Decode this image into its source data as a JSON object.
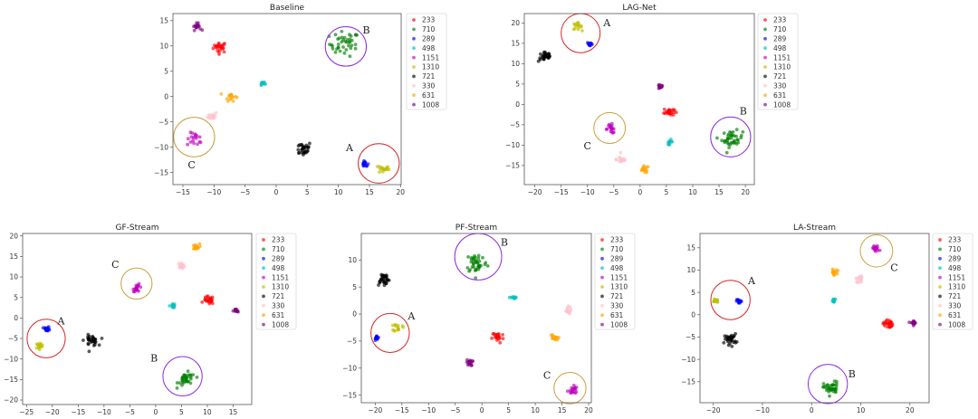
{
  "chart_data": [
    {
      "type": "scatter",
      "title": "Baseline",
      "xlim": [
        -16.6,
        20.1
      ],
      "ylim": [
        -17.4,
        16.4
      ],
      "xticks": [
        -15,
        -10,
        -5,
        0,
        5,
        10,
        15,
        20
      ],
      "yticks": [
        -15,
        -10,
        -5,
        0,
        5,
        10,
        15
      ],
      "legend_position": "outside-right",
      "clusters": [
        {
          "label": "233",
          "center": [
            -9,
            9.8
          ],
          "spread": 1.0,
          "n": 25
        },
        {
          "label": "710",
          "center": [
            11,
            10.4
          ],
          "spread": 2.2,
          "n": 40
        },
        {
          "label": "289",
          "center": [
            14.3,
            -13.4
          ],
          "spread": 0.5,
          "n": 14
        },
        {
          "label": "498",
          "center": [
            -2.3,
            2.6
          ],
          "spread": 0.5,
          "n": 10
        },
        {
          "label": "1151",
          "center": [
            -13,
            -8.5
          ],
          "spread": 1.2,
          "n": 18
        },
        {
          "label": "1310",
          "center": [
            17.3,
            -14.3
          ],
          "spread": 0.8,
          "n": 18
        },
        {
          "label": "721",
          "center": [
            4.3,
            -10.3
          ],
          "spread": 1.3,
          "n": 30
        },
        {
          "label": "330",
          "center": [
            -10.2,
            -3.8
          ],
          "spread": 0.7,
          "n": 15
        },
        {
          "label": "631",
          "center": [
            -7.3,
            0
          ],
          "spread": 0.8,
          "n": 16
        },
        {
          "label": "1008",
          "center": [
            -12.8,
            13.8
          ],
          "spread": 0.6,
          "n": 16
        }
      ],
      "annotations": [
        {
          "text": "B",
          "circle_center": [
            11.2,
            9.9
          ],
          "rx": 3.3,
          "ry": 3.9,
          "color": "#8a2be2",
          "label_pos": [
            14.5,
            12.5
          ]
        },
        {
          "text": "A",
          "circle_center": [
            16.5,
            -13.2
          ],
          "rx": 3.3,
          "ry": 3.9,
          "color": "#d62728",
          "label_pos": [
            11.8,
            -10.8
          ]
        },
        {
          "text": "C",
          "circle_center": [
            -13.2,
            -8
          ],
          "rx": 3.3,
          "ry": 3.9,
          "color": "#c8a040",
          "label_pos": [
            -13.6,
            -14.2
          ]
        }
      ]
    },
    {
      "type": "scatter",
      "title": "LAG-Net",
      "xlim": [
        -22,
        21.7
      ],
      "ylim": [
        -19.7,
        22.3
      ],
      "xticks": [
        -20,
        -15,
        -10,
        -5,
        0,
        5,
        10,
        15,
        20
      ],
      "yticks": [
        -15,
        -10,
        -5,
        0,
        5,
        10,
        15,
        20
      ],
      "legend_position": "outside-right",
      "clusters": [
        {
          "label": "233",
          "center": [
            5.5,
            -1.8
          ],
          "spread": 0.9,
          "n": 25
        },
        {
          "label": "710",
          "center": [
            17.5,
            -8.5
          ],
          "spread": 1.8,
          "n": 40
        },
        {
          "label": "289",
          "center": [
            -9.5,
            14.8
          ],
          "spread": 0.5,
          "n": 14
        },
        {
          "label": "498",
          "center": [
            5.6,
            -9.2
          ],
          "spread": 0.5,
          "n": 10
        },
        {
          "label": "1151",
          "center": [
            -5.5,
            -6
          ],
          "spread": 1.0,
          "n": 18
        },
        {
          "label": "1310",
          "center": [
            -12,
            19.2
          ],
          "spread": 0.8,
          "n": 16
        },
        {
          "label": "721",
          "center": [
            -18,
            11.8
          ],
          "spread": 1.2,
          "n": 30
        },
        {
          "label": "330",
          "center": [
            -3.5,
            -13.5
          ],
          "spread": 0.9,
          "n": 15
        },
        {
          "label": "631",
          "center": [
            0.8,
            -16
          ],
          "spread": 0.8,
          "n": 16
        },
        {
          "label": "1008",
          "center": [
            3.8,
            4.3
          ],
          "spread": 0.5,
          "n": 16
        }
      ],
      "annotations": [
        {
          "text": "A",
          "circle_center": [
            -11.3,
            17.5
          ],
          "rx": 3.7,
          "ry": 4.8,
          "color": "#d62728",
          "label_pos": [
            -6.3,
            19.2
          ]
        },
        {
          "text": "B",
          "circle_center": [
            17.2,
            -8
          ],
          "rx": 3.8,
          "ry": 4.9,
          "color": "#8a2be2",
          "label_pos": [
            19.6,
            -2.5
          ]
        },
        {
          "text": "C",
          "circle_center": [
            -5.8,
            -5.8
          ],
          "rx": 3.0,
          "ry": 3.8,
          "color": "#c8a040",
          "label_pos": [
            -10,
            -11
          ]
        }
      ]
    },
    {
      "type": "scatter",
      "title": "GF-Stream",
      "xlim": [
        -25.75,
        18.6
      ],
      "ylim": [
        -21.1,
        20.6
      ],
      "xticks": [
        -25,
        -20,
        -15,
        -10,
        -5,
        0,
        5,
        10,
        15
      ],
      "yticks": [
        -20,
        -15,
        -10,
        -5,
        0,
        5,
        10,
        15,
        20
      ],
      "legend_position": "outside-right",
      "clusters": [
        {
          "label": "233",
          "center": [
            10.3,
            4.3
          ],
          "spread": 0.9,
          "n": 25
        },
        {
          "label": "710",
          "center": [
            6,
            -15
          ],
          "spread": 1.5,
          "n": 35
        },
        {
          "label": "289",
          "center": [
            -21,
            -2.7
          ],
          "spread": 0.5,
          "n": 14
        },
        {
          "label": "498",
          "center": [
            3.3,
            3
          ],
          "spread": 0.5,
          "n": 10
        },
        {
          "label": "1151",
          "center": [
            -3.5,
            7.3
          ],
          "spread": 0.8,
          "n": 18
        },
        {
          "label": "1310",
          "center": [
            -22.5,
            -6.8
          ],
          "spread": 0.7,
          "n": 16
        },
        {
          "label": "721",
          "center": [
            -12.5,
            -5.5
          ],
          "spread": 1.2,
          "n": 30
        },
        {
          "label": "330",
          "center": [
            5,
            12.8
          ],
          "spread": 0.6,
          "n": 15
        },
        {
          "label": "631",
          "center": [
            7.7,
            17.3
          ],
          "spread": 0.7,
          "n": 16
        },
        {
          "label": "1008",
          "center": [
            15.5,
            1.7
          ],
          "spread": 0.45,
          "n": 16
        }
      ],
      "annotations": [
        {
          "text": "A",
          "circle_center": [
            -21.2,
            -5
          ],
          "rx": 3.7,
          "ry": 4.7,
          "color": "#d62728",
          "label_pos": [
            -18.3,
            -1.6
          ]
        },
        {
          "text": "B",
          "circle_center": [
            5.2,
            -14.2
          ],
          "rx": 3.8,
          "ry": 4.8,
          "color": "#8a2be2",
          "label_pos": [
            -0.3,
            -10.6
          ]
        },
        {
          "text": "C",
          "circle_center": [
            -3.7,
            8.4
          ],
          "rx": 3.0,
          "ry": 3.8,
          "color": "#c8a040",
          "label_pos": [
            -7.8,
            12.2
          ]
        }
      ]
    },
    {
      "type": "scatter",
      "title": "PF-Stream",
      "xlim": [
        -22.6,
        20.5
      ],
      "ylim": [
        -16.4,
        14.9
      ],
      "xticks": [
        -20,
        -15,
        -10,
        -5,
        0,
        5,
        10,
        15,
        20
      ],
      "yticks": [
        -15,
        -10,
        -5,
        0,
        5,
        10
      ],
      "legend_position": "outside-right",
      "clusters": [
        {
          "label": "233",
          "center": [
            3,
            -4.3
          ],
          "spread": 1.0,
          "n": 25
        },
        {
          "label": "710",
          "center": [
            -1,
            9.5
          ],
          "spread": 1.8,
          "n": 40
        },
        {
          "label": "289",
          "center": [
            -19.7,
            -4.5
          ],
          "spread": 0.4,
          "n": 14
        },
        {
          "label": "498",
          "center": [
            6,
            3
          ],
          "spread": 0.5,
          "n": 10
        },
        {
          "label": "1151",
          "center": [
            17,
            -14
          ],
          "spread": 0.8,
          "n": 18
        },
        {
          "label": "1310",
          "center": [
            -15.7,
            -2.5
          ],
          "spread": 0.7,
          "n": 16
        },
        {
          "label": "721",
          "center": [
            -18.5,
            6.5
          ],
          "spread": 1.1,
          "n": 30
        },
        {
          "label": "330",
          "center": [
            16,
            0.7
          ],
          "spread": 0.6,
          "n": 15
        },
        {
          "label": "631",
          "center": [
            13.5,
            -4.5
          ],
          "spread": 0.7,
          "n": 16
        },
        {
          "label": "1008",
          "center": [
            -2.3,
            -9
          ],
          "spread": 0.5,
          "n": 16
        }
      ],
      "annotations": [
        {
          "text": "A",
          "circle_center": [
            -17.2,
            -3.5
          ],
          "rx": 3.6,
          "ry": 3.6,
          "color": "#d62728",
          "label_pos": [
            -13.2,
            -1
          ]
        },
        {
          "text": "B",
          "circle_center": [
            -0.7,
            10.6
          ],
          "rx": 4.4,
          "ry": 4.3,
          "color": "#8a2be2",
          "label_pos": [
            4.2,
            12.6
          ]
        },
        {
          "text": "C",
          "circle_center": [
            16.5,
            -13.7
          ],
          "rx": 3.0,
          "ry": 2.9,
          "color": "#c8a040",
          "label_pos": [
            12.2,
            -12
          ]
        }
      ]
    },
    {
      "type": "scatter",
      "title": "LA-Stream",
      "xlim": [
        -22.7,
        23.9
      ],
      "ylim": [
        -19.7,
        18.2
      ],
      "xticks": [
        -20,
        -10,
        0,
        10,
        20
      ],
      "yticks": [
        -15,
        -10,
        -5,
        0,
        5,
        10,
        15
      ],
      "legend_position": "outside-right",
      "clusters": [
        {
          "label": "233",
          "center": [
            15.5,
            -2
          ],
          "spread": 0.9,
          "n": 25
        },
        {
          "label": "710",
          "center": [
            4,
            -16.5
          ],
          "spread": 1.4,
          "n": 38
        },
        {
          "label": "289",
          "center": [
            -14.7,
            3
          ],
          "spread": 0.45,
          "n": 14
        },
        {
          "label": "498",
          "center": [
            4.6,
            3
          ],
          "spread": 0.5,
          "n": 10
        },
        {
          "label": "1151",
          "center": [
            13,
            14.8
          ],
          "spread": 0.7,
          "n": 18
        },
        {
          "label": "1310",
          "center": [
            -19.5,
            3.2
          ],
          "spread": 0.5,
          "n": 16
        },
        {
          "label": "721",
          "center": [
            -16.5,
            -5.5
          ],
          "spread": 1.1,
          "n": 30
        },
        {
          "label": "330",
          "center": [
            9.8,
            8
          ],
          "spread": 0.7,
          "n": 15
        },
        {
          "label": "631",
          "center": [
            4.5,
            9.5
          ],
          "spread": 0.6,
          "n": 16
        },
        {
          "label": "1008",
          "center": [
            20.7,
            -1.8
          ],
          "spread": 0.5,
          "n": 16
        }
      ],
      "annotations": [
        {
          "text": "A",
          "circle_center": [
            -16.5,
            3.3
          ],
          "rx": 4.0,
          "ry": 4.4,
          "color": "#d62728",
          "label_pos": [
            -12.2,
            6.8
          ]
        },
        {
          "text": "B",
          "circle_center": [
            3.3,
            -15.5
          ],
          "rx": 4.0,
          "ry": 4.4,
          "color": "#8a2be2",
          "label_pos": [
            8.2,
            -14
          ]
        },
        {
          "text": "C",
          "circle_center": [
            13.2,
            14.3
          ],
          "rx": 3.3,
          "ry": 3.6,
          "color": "#c8a040",
          "label_pos": [
            16.8,
            9.8
          ]
        }
      ]
    }
  ],
  "legend": {
    "labels": [
      "233",
      "710",
      "289",
      "498",
      "1151",
      "1310",
      "721",
      "330",
      "631",
      "1008"
    ],
    "colors": {
      "233": "#ff0000",
      "710": "#008000",
      "289": "#0000ff",
      "498": "#00bfbf",
      "1151": "#bf00bf",
      "1310": "#bfbf00",
      "721": "#000000",
      "330": "#ffc0cb",
      "631": "#ffa500",
      "1008": "#800080"
    }
  }
}
